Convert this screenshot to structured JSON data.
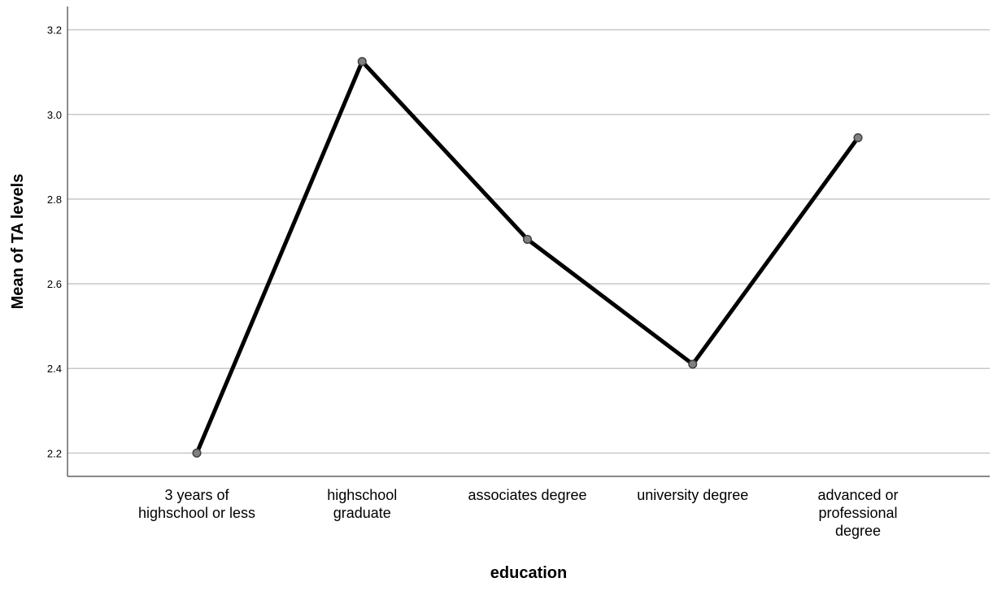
{
  "chart_data": {
    "type": "line",
    "xlabel": "education",
    "ylabel": "Mean of TA levels",
    "categories": [
      [
        "3 years of",
        "highschool or less"
      ],
      [
        "highschool",
        "graduate"
      ],
      [
        "associates degree"
      ],
      [
        "university degree"
      ],
      [
        "advanced or",
        "professional",
        "degree"
      ]
    ],
    "values": [
      2.2,
      3.125,
      2.705,
      2.41,
      2.945
    ],
    "ylim": [
      2.145,
      3.255
    ],
    "yticks": [
      2.2,
      2.4,
      2.6,
      2.8,
      3.0,
      3.2
    ],
    "ytick_labels": [
      "2.2",
      "2.4",
      "2.6",
      "2.8",
      "3.0",
      "3.2"
    ],
    "grid": "horizontal",
    "legend": "none",
    "colors": {
      "line": "#000000",
      "marker_fill": "#808080",
      "marker_stroke": "#404040",
      "grid": "#c8c8c8",
      "axis": "#404040"
    }
  }
}
